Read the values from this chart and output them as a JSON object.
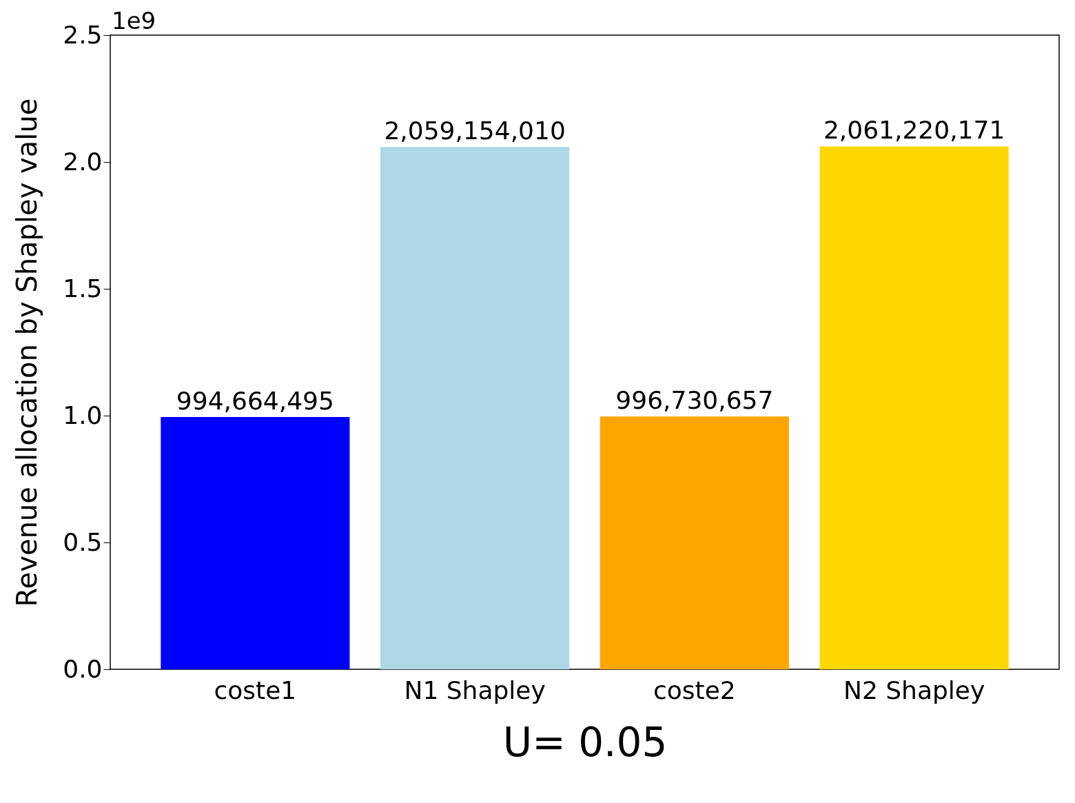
{
  "chart_data": {
    "type": "bar",
    "xlabel": "U= 0.05",
    "ylabel": "Revenue allocation by Shapley value",
    "categories": [
      "coste1",
      "N1 Shapley",
      "coste2",
      "N2 Shapley"
    ],
    "values": [
      0.994664495,
      2.05915401,
      0.996730657,
      2.061220171
    ],
    "colors": [
      "#0000ff",
      "#add8e6",
      "#ffa500",
      "#ffd700"
    ],
    "ylim": [
      0,
      2.5
    ],
    "yticks": [
      {
        "value": 0,
        "label": "0.0"
      },
      0.5,
      {
        "value": 1,
        "label": "1.0"
      },
      1.5,
      {
        "value": 2,
        "label": "2.0"
      },
      2.5
    ],
    "grid": false,
    "annotations": [
      "1e9",
      {
        "text": "994,664,495",
        "x": "coste1",
        "y": 0.994664495
      },
      {
        "text": "2,059,154,010",
        "x": "N1 Shapley",
        "y": 2.05915401
      },
      {
        "text": "996,730,657",
        "x": "coste2",
        "y": 0.996730657
      },
      {
        "text": "2,061,220,171",
        "x": "N2 Shapley",
        "y": 2.061220171
      }
    ]
  }
}
